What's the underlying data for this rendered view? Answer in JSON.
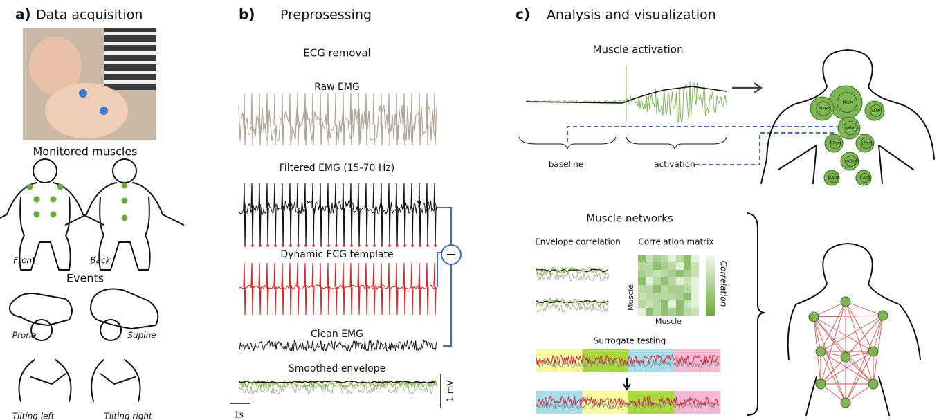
{
  "panel_a": {
    "label": "a)",
    "title": "Data acquisition",
    "monitored_title": "Monitored muscles",
    "views": [
      "Front",
      "Back"
    ],
    "events_title": "Events",
    "events": [
      "Prone",
      "Supine",
      "Tilting left",
      "Tilting right"
    ]
  },
  "panel_b": {
    "label": "b)",
    "title": "Preprosessing",
    "subtitle": "ECG removal",
    "traces": [
      "Raw EMG",
      "Filtered EMG (15-70 Hz)",
      "Dynamic ECG template",
      "Clean EMG",
      "Smoothed envelope"
    ],
    "scale_y": "1 mV",
    "scale_x": "1s"
  },
  "panel_c": {
    "label": "c)",
    "title": "Analysis and visualization",
    "activation_title": "Muscle activation",
    "phases": [
      "baseline",
      "activation"
    ],
    "muscles": [
      "Neck",
      "RDelt",
      "LDelt",
      "UpBack",
      "RPect",
      "LPect",
      "LoBack",
      "RAbd",
      "LAbd"
    ],
    "networks_title": "Muscle networks",
    "envelope_title": "Envelope correlation",
    "matrix_title": "Correlation matrix",
    "matrix_colorbar": "Correlation",
    "matrix_y": "Muscle",
    "matrix_x": "Muscle",
    "surrogate_title": "Surrogate testing"
  }
}
